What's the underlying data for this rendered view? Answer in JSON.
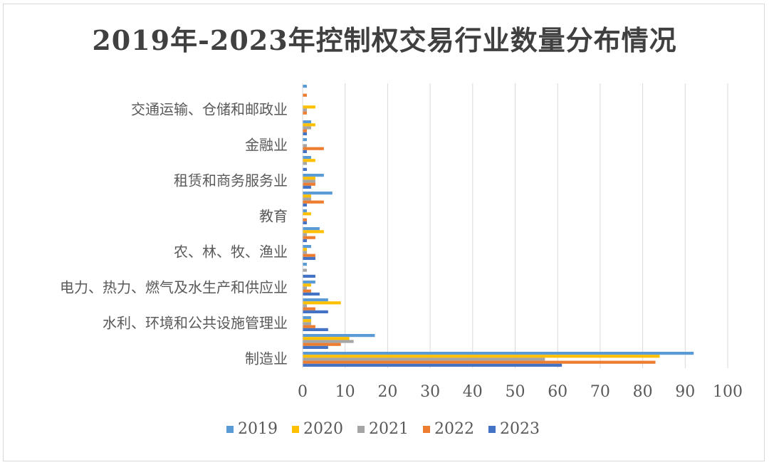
{
  "chart_data": {
    "type": "bar",
    "orientation": "horizontal",
    "title": "2019年-2023年控制权交易行业数量分布情况",
    "categories": [
      "制造业",
      "",
      "水利、环境和公共设施管理业",
      "",
      "电力、热力、燃气及水生产和供应业",
      "",
      "农、林、牧、渔业",
      "",
      "教育",
      "",
      "租赁和商务服务业",
      "",
      "金融业",
      "",
      "交通运输、仓储和邮政业",
      ""
    ],
    "series": [
      {
        "name": "2019",
        "color": "#5b9bd5",
        "values": [
          92,
          17,
          2,
          6,
          3,
          1,
          2,
          4,
          1,
          7,
          5,
          2,
          1,
          2,
          0,
          1
        ]
      },
      {
        "name": "2020",
        "color": "#ffc000",
        "values": [
          84,
          11,
          2,
          9,
          2,
          0,
          1,
          5,
          2,
          2,
          3,
          3,
          0,
          3,
          3,
          0
        ]
      },
      {
        "name": "2021",
        "color": "#a5a5a5",
        "values": [
          57,
          12,
          2,
          1,
          1,
          1,
          1,
          1,
          0,
          2,
          3,
          1,
          1,
          2,
          1,
          0
        ]
      },
      {
        "name": "2022",
        "color": "#ed7d31",
        "values": [
          83,
          9,
          3,
          3,
          2,
          0,
          3,
          3,
          1,
          5,
          3,
          0,
          5,
          1,
          1,
          1
        ]
      },
      {
        "name": "2023",
        "color": "#4472c4",
        "values": [
          61,
          6,
          6,
          6,
          4,
          3,
          3,
          1,
          1,
          1,
          2,
          1,
          1,
          1,
          0,
          0
        ]
      }
    ],
    "xlim": [
      0,
      100
    ],
    "xticks": [
      "0",
      "10",
      "20",
      "30",
      "40",
      "50",
      "60",
      "70",
      "80",
      "90",
      "100"
    ],
    "grid": true,
    "legend_position": "bottom"
  }
}
